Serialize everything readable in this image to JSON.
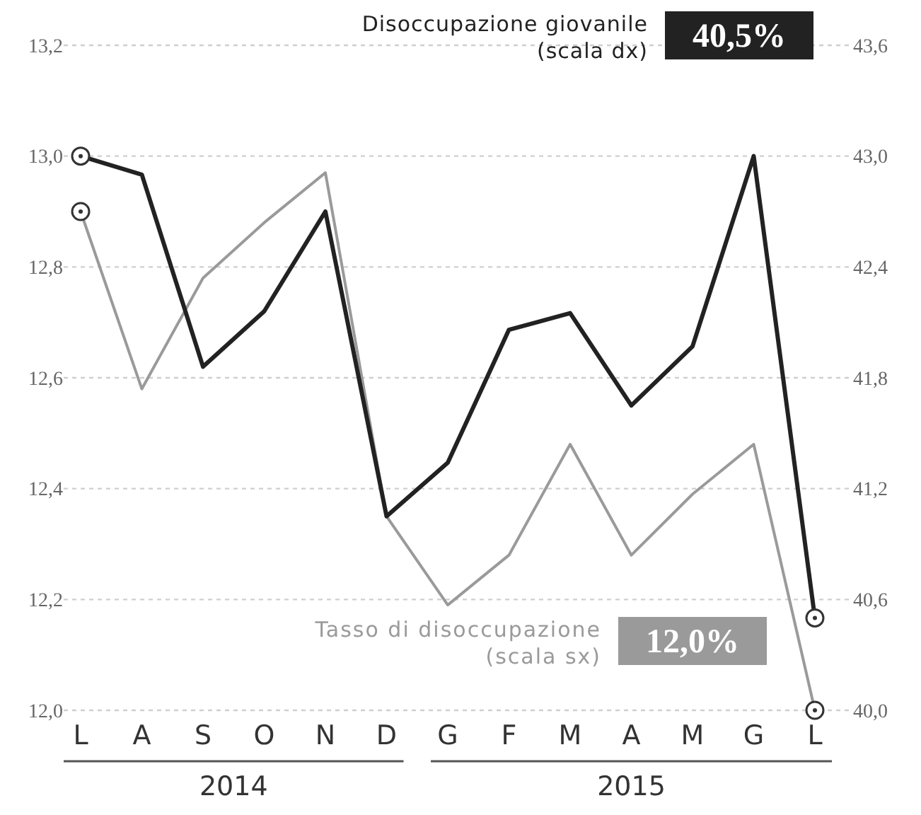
{
  "chart_data": {
    "type": "line",
    "categories": [
      "L",
      "A",
      "S",
      "O",
      "N",
      "D",
      "G",
      "F",
      "M",
      "A",
      "M",
      "G",
      "L"
    ],
    "series": [
      {
        "name": "Tasso di disoccupazione (scala sx)",
        "color": "#9a9a9a",
        "values": [
          12.9,
          12.58,
          12.78,
          12.88,
          12.97,
          12.35,
          12.19,
          12.28,
          12.48,
          12.28,
          12.39,
          12.48,
          12.0
        ]
      },
      {
        "name": "Disoccupazione giovanile (scala dx)",
        "color": "#222222",
        "axis": "y2",
        "values": [
          43.0,
          42.9,
          41.86,
          42.16,
          42.7,
          41.05,
          41.34,
          42.06,
          42.15,
          41.65,
          41.97,
          43.0,
          40.5
        ]
      }
    ],
    "ylim": [
      12.0,
      13.2
    ],
    "yticks": [
      {
        "value": 12.0,
        "label": "12,0"
      },
      {
        "value": 12.2,
        "label": "12,2"
      },
      {
        "value": 12.4,
        "label": "12,4"
      },
      {
        "value": 12.6,
        "label": "12,6"
      },
      {
        "value": 12.8,
        "label": "12,8"
      },
      {
        "value": 13.0,
        "label": "13,0"
      },
      {
        "value": 13.2,
        "label": "13,2"
      }
    ],
    "y2lim": [
      40.0,
      43.6
    ],
    "y2ticks": [
      {
        "value": 40.0,
        "label": "40,0"
      },
      {
        "value": 40.6,
        "label": "40,6"
      },
      {
        "value": 41.2,
        "label": "41,2"
      },
      {
        "value": 41.8,
        "label": "41,8"
      },
      {
        "value": 42.4,
        "label": "42,4"
      },
      {
        "value": 43.0,
        "label": "43,0"
      },
      {
        "value": 43.6,
        "label": "43,6"
      }
    ],
    "grid": "y",
    "legend": "right",
    "annotations": [
      "12,0%",
      "40,5%",
      "2014",
      "2015"
    ]
  }
}
